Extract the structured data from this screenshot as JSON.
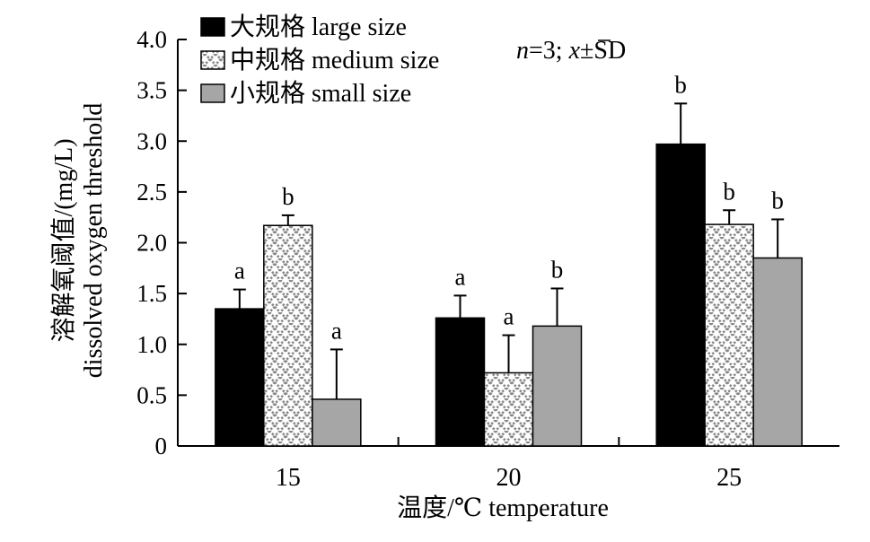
{
  "chart_data": {
    "type": "bar",
    "categories": [
      "15",
      "20",
      "25"
    ],
    "series": [
      {
        "name": "大规格 large size",
        "values": [
          1.35,
          1.26,
          2.97
        ],
        "errors": [
          0.19,
          0.22,
          0.4
        ],
        "labels": [
          "a",
          "a",
          "b"
        ],
        "color": "#000000",
        "fill": "solid"
      },
      {
        "name": "中规格 medium size",
        "values": [
          2.17,
          0.72,
          2.18
        ],
        "errors": [
          0.1,
          0.37,
          0.14
        ],
        "labels": [
          "b",
          "a",
          "b"
        ],
        "color": "#ffffff",
        "fill": "crosshatch"
      },
      {
        "name": "小规格 small size",
        "values": [
          0.46,
          1.18,
          1.85
        ],
        "errors": [
          0.49,
          0.37,
          0.38
        ],
        "labels": [
          "a",
          "b",
          "b"
        ],
        "color": "#a6a6a6",
        "fill": "solid"
      }
    ],
    "xlabel": "温度/℃ temperature",
    "ylabel_line1": "溶解氧阈值/(mg/L)",
    "ylabel_line2": "dissolved oxygen threshold",
    "ylim": [
      0,
      4.0
    ],
    "yticks": [
      0,
      0.5,
      1.0,
      1.5,
      2.0,
      2.5,
      3.0,
      3.5,
      4.0
    ],
    "ytick_labels": [
      "0",
      "0.5",
      "1.0",
      "1.5",
      "2.0",
      "2.5",
      "3.0",
      "3.5",
      "4.0"
    ],
    "annotation": {
      "n_italic": "n",
      "n_text": "=3; ",
      "xbar": "x",
      "rest": "±SD"
    },
    "legend_position": "top-left",
    "grid": false
  }
}
